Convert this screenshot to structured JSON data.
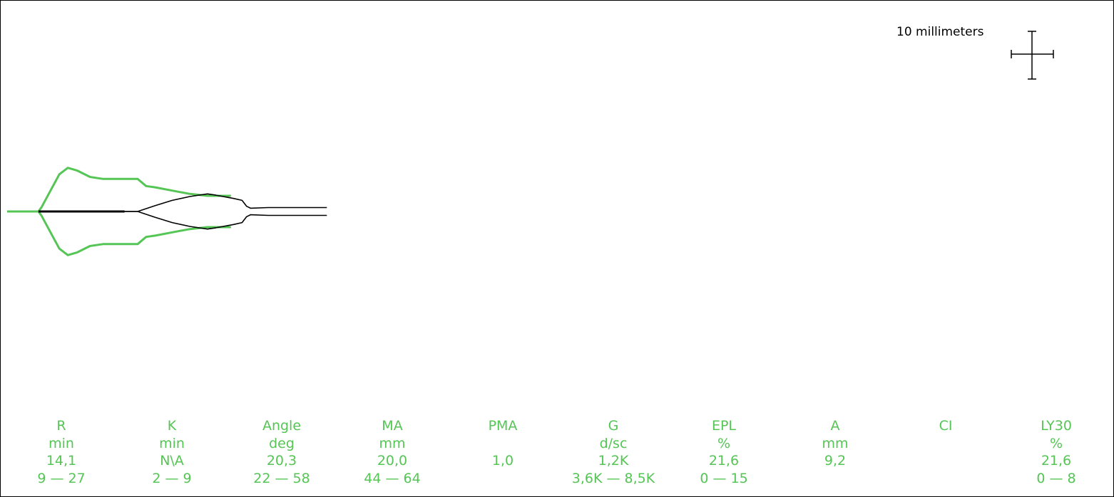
{
  "colors": {
    "outer": "#55c555",
    "inner": "#000000",
    "text": "#55c555",
    "background": "#ffffff"
  },
  "scale": {
    "label": "10 millimeters"
  },
  "params": [
    {
      "name": "R",
      "unit": "min",
      "value": "14,1",
      "range": "9 — 27"
    },
    {
      "name": "K",
      "unit": "min",
      "value": "N\\A",
      "range": "2 — 9"
    },
    {
      "name": "Angle",
      "unit": "deg",
      "value": "20,3",
      "range": "22 — 58"
    },
    {
      "name": "MA",
      "unit": "mm",
      "value": "20,0",
      "range": "44 — 64"
    },
    {
      "name": "PMA",
      "unit": "",
      "value": "1,0",
      "range": ""
    },
    {
      "name": "G",
      "unit": "d/sc",
      "value": "1,2K",
      "range": "3,6K — 8,5K"
    },
    {
      "name": "EPL",
      "unit": "%",
      "value": "21,6",
      "range": "0 — 15"
    },
    {
      "name": "A",
      "unit": "mm",
      "value": "9,2",
      "range": ""
    },
    {
      "name": "CI",
      "unit": "",
      "value": "",
      "range": ""
    },
    {
      "name": "LY30",
      "unit": "%",
      "value": "21,6",
      "range": "0 — 8"
    }
  ],
  "chart_data": {
    "type": "line",
    "title": "",
    "xlabel": "",
    "ylabel": "",
    "grid": false,
    "scale_unit_mm": 10,
    "series": [
      {
        "x": [
          0,
          4.8,
          5.3,
          6.7,
          8.0,
          9.3,
          10.7,
          12.7,
          14.7,
          17.3,
          20.0,
          21.3,
          22.7,
          25.3,
          28.0,
          30.7,
          34.3
        ],
        "y": [
          0,
          0,
          0.7,
          3.3,
          5.7,
          6.7,
          6.3,
          5.3,
          5.0,
          5.0,
          5.0,
          3.9,
          3.7,
          3.2,
          2.7,
          2.4,
          2.4
        ]
      },
      {
        "x": [
          18.0,
          20.0,
          22.7,
          25.3,
          28.0,
          30.7,
          32.0,
          34.7,
          36.0,
          36.7,
          37.3,
          40.0,
          44.0,
          49.0
        ],
        "y": [
          0,
          0,
          0.9,
          1.7,
          2.3,
          2.7,
          2.5,
          2.0,
          1.7,
          0.8,
          0.5,
          0.6,
          0.6,
          0.6
        ]
      }
    ]
  }
}
